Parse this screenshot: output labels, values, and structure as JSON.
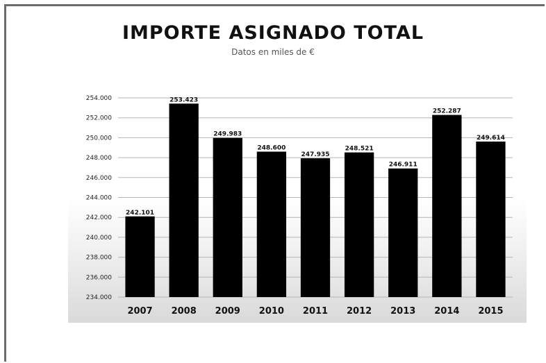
{
  "chart_data": {
    "type": "bar",
    "title": "IMPORTE ASIGNADO TOTAL",
    "subtitle": "Datos en miles de €",
    "xlabel": "",
    "ylabel": "",
    "categories": [
      "2007",
      "2008",
      "2009",
      "2010",
      "2011",
      "2012",
      "2013",
      "2014",
      "2015"
    ],
    "values": [
      242101,
      253423,
      249983,
      248600,
      247935,
      248521,
      246911,
      252287,
      249614
    ],
    "data_labels": [
      "242.101",
      "253.423",
      "249.983",
      "248.600",
      "247.935",
      "248.521",
      "246.911",
      "252.287",
      "249.614"
    ],
    "y_ticks": [
      234000,
      236000,
      238000,
      240000,
      242000,
      244000,
      246000,
      248000,
      250000,
      252000,
      254000
    ],
    "y_tick_labels": [
      "234.000",
      "236.000",
      "238.000",
      "240.000",
      "242.000",
      "244.000",
      "246.000",
      "248.000",
      "250.000",
      "252.000",
      "254.000"
    ],
    "ylim": [
      234000,
      254000
    ],
    "grid": true,
    "legend": "none",
    "bar_color": "#000000"
  }
}
